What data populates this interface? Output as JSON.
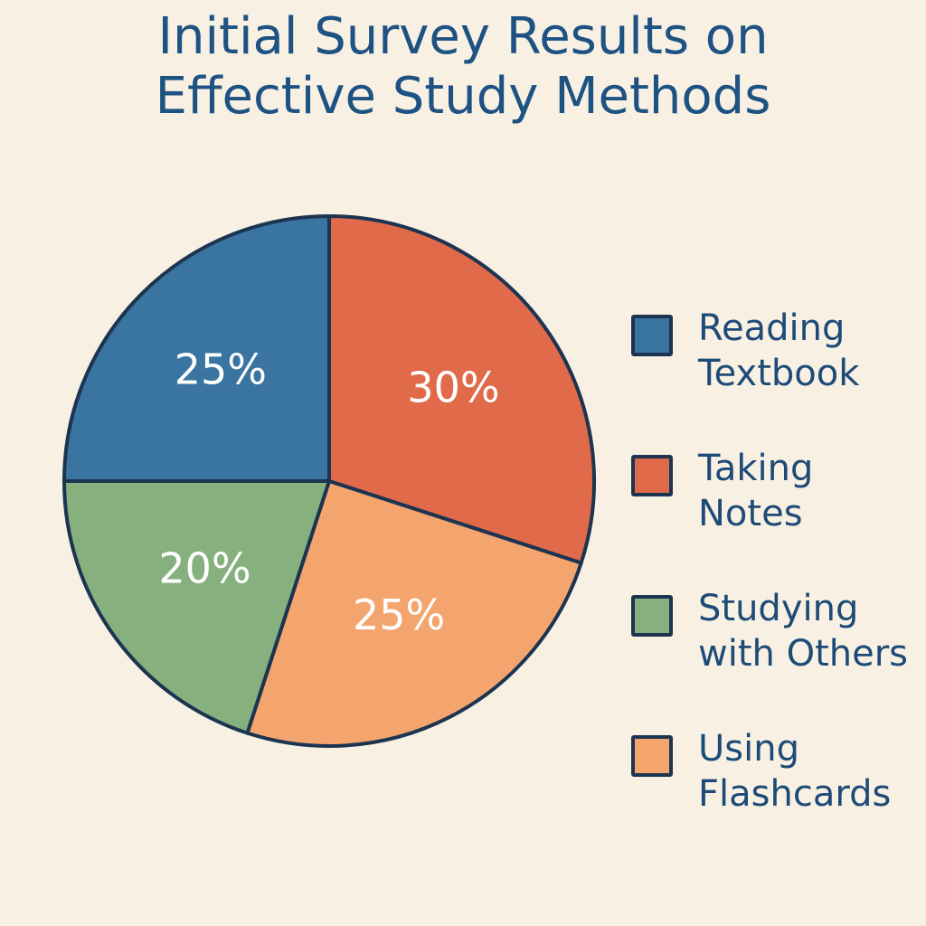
{
  "chart_data": {
    "type": "pie",
    "title": [
      "Initial Survey Results on",
      "Effective Study Methods"
    ],
    "slices": [
      {
        "label": [
          "Reading",
          "Textbook"
        ],
        "value": 25,
        "display": "25%",
        "color": "#3a74a0"
      },
      {
        "label": [
          "Taking",
          "Notes"
        ],
        "value": 30,
        "display": "30%",
        "color": "#e06a4a"
      },
      {
        "label": [
          "Studying",
          "with Others"
        ],
        "value": 20,
        "display": "20%",
        "color": "#86b07e"
      },
      {
        "label": [
          "Using",
          "Flashcards"
        ],
        "value": 25,
        "display": "25%",
        "color": "#f4a56e"
      }
    ],
    "legend_position": "right"
  },
  "colors": {
    "background": "#f8f1e3",
    "title": "#1d5283",
    "outline": "#1c3450"
  }
}
